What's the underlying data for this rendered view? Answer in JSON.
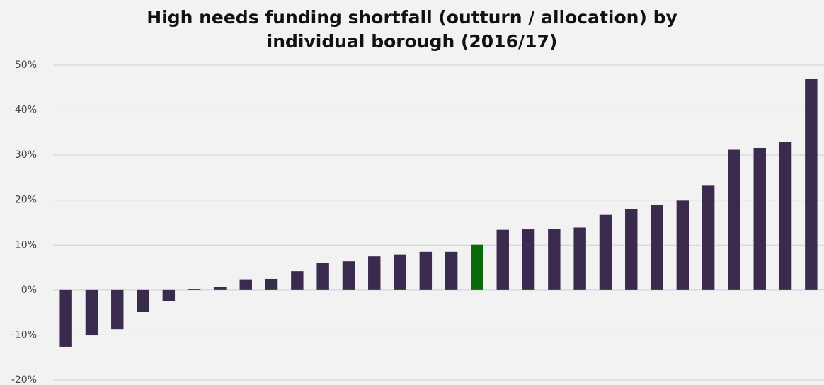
{
  "chart_data": {
    "type": "bar",
    "title": "High needs funding shortfall (outturn / allocation) by individual borough (2016/17)",
    "categories": [
      null,
      null,
      null,
      null,
      null,
      null,
      null,
      null,
      null,
      null,
      null,
      null,
      null,
      null,
      null,
      null,
      null,
      null,
      null,
      null,
      null,
      null,
      null,
      null,
      null,
      null,
      null,
      null,
      null,
      null
    ],
    "values": [
      -12.6,
      -10.1,
      -8.7,
      -4.9,
      -2.5,
      0.2,
      0.7,
      2.4,
      2.5,
      4.2,
      6.1,
      6.4,
      7.5,
      7.9,
      8.5,
      8.5,
      10.1,
      13.4,
      13.5,
      13.6,
      13.9,
      16.7,
      18.0,
      18.9,
      19.9,
      23.2,
      31.2,
      31.6,
      32.9,
      47.0
    ],
    "colors": [
      "#3a2b4e",
      "#3a2b4e",
      "#3a2b4e",
      "#3a2b4e",
      "#3a2b4e",
      "#3a2b4e",
      "#3a2b4e",
      "#3a2b4e",
      "#3a2b4e",
      "#3a2b4e",
      "#3a2b4e",
      "#3a2b4e",
      "#3a2b4e",
      "#3a2b4e",
      "#3a2b4e",
      "#3a2b4e",
      "#0a6a0a",
      "#3a2b4e",
      "#3a2b4e",
      "#3a2b4e",
      "#3a2b4e",
      "#3a2b4e",
      "#3a2b4e",
      "#3a2b4e",
      "#3a2b4e",
      "#3a2b4e",
      "#3a2b4e",
      "#3a2b4e",
      "#3a2b4e",
      "#3a2b4e"
    ],
    "ylim": [
      -20,
      50
    ],
    "yticks": [
      {
        "value": -20,
        "label": "-20%"
      },
      {
        "value": -10,
        "label": "-10%"
      },
      {
        "value": 0,
        "label": "0%"
      },
      {
        "value": 10,
        "label": "10%"
      },
      {
        "value": 20,
        "label": "20%"
      },
      {
        "value": 30,
        "label": "30%"
      },
      {
        "value": 40,
        "label": "40%"
      },
      {
        "value": 50,
        "label": "50%"
      }
    ],
    "grid": true
  }
}
